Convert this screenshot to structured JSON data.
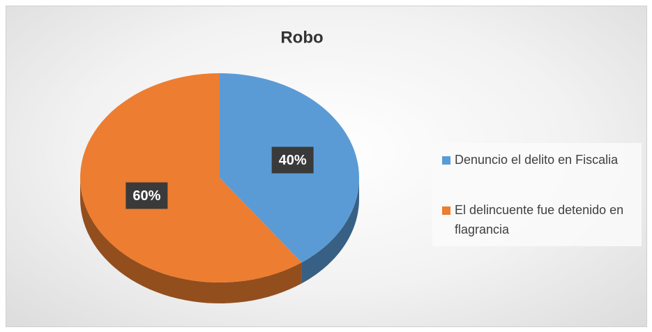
{
  "chart_data": {
    "type": "pie",
    "title": "Robo",
    "categories": [
      "Denuncio el delito en Fiscalia",
      "El delincuente fue detenido en flagrancia"
    ],
    "values": [
      40,
      60
    ],
    "value_labels": [
      "40%",
      "60%"
    ],
    "colors": [
      "#5b9bd5",
      "#ed7d31"
    ]
  }
}
